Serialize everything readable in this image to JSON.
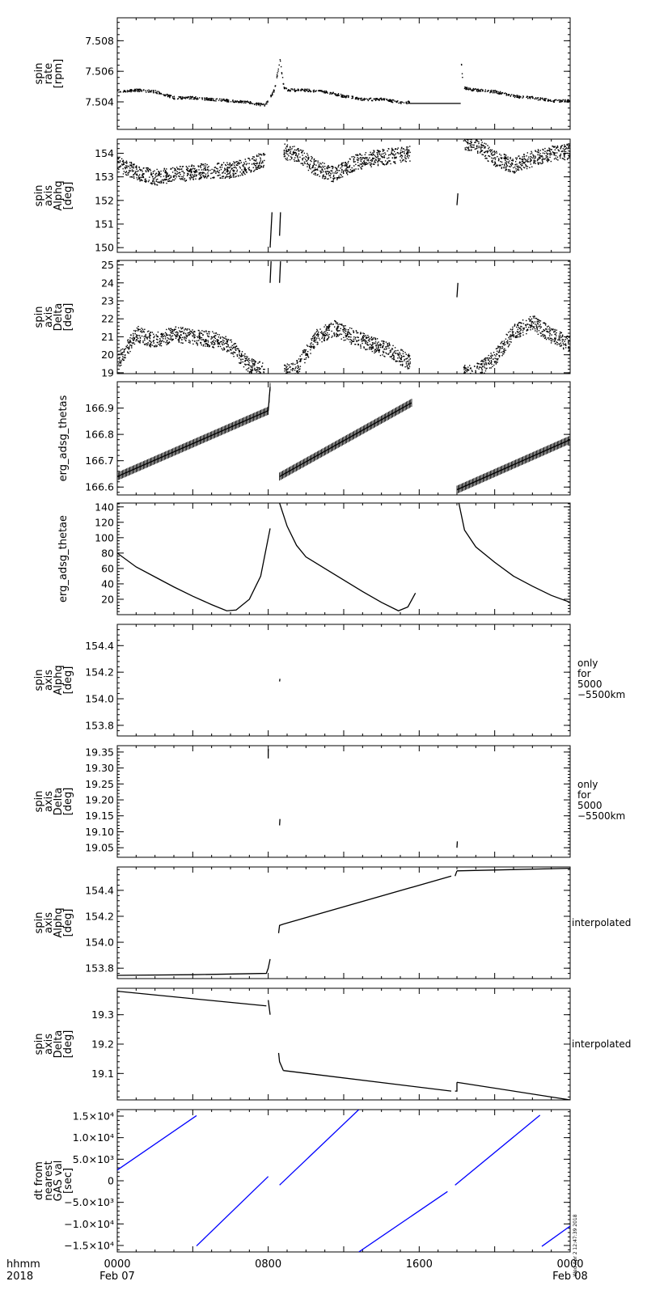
{
  "figure": {
    "time_row_label": "hhmm",
    "year_row_label": "2018",
    "time_ticks": [
      "0000",
      "0800",
      "1600",
      "0000"
    ],
    "date_ticks": [
      "Feb 07",
      "",
      "",
      "Feb 08"
    ],
    "stamp": "Wed Apr  2 12:47:39 2018"
  },
  "chart_data": [
    {
      "type": "scatter",
      "id": "spin_rate",
      "ylabel": [
        "spin",
        "rate",
        "[rpm]"
      ],
      "yticks": [
        "7.508",
        "7.506",
        "7.504"
      ],
      "ytick_values": [
        7.508,
        7.506,
        7.504
      ],
      "ylim": [
        7.5022,
        7.5095
      ],
      "xlim": [
        0,
        24
      ],
      "x_unit": "hours (2018-02-07 UT)",
      "color": "#000000",
      "segments": [
        {
          "x": [
            0,
            1,
            2,
            3,
            4,
            5,
            6,
            7,
            7.8,
            8.3,
            8.6,
            8.8,
            9,
            10,
            11,
            12,
            13,
            14,
            15,
            15.5
          ],
          "y": [
            7.5047,
            7.5048,
            7.5047,
            7.5043,
            7.5043,
            7.5042,
            7.5041,
            7.504,
            7.5038,
            7.5048,
            7.5068,
            7.505,
            7.5048,
            7.5048,
            7.5047,
            7.5044,
            7.5042,
            7.5042,
            7.504,
            7.504
          ]
        },
        {
          "x": [
            15.5,
            16,
            17,
            18.2
          ],
          "y": [
            7.5039,
            7.5039,
            7.5039,
            7.5039
          ],
          "style": "line"
        },
        {
          "x": [
            18.2,
            18.3,
            18.5,
            19,
            20,
            21,
            22,
            23,
            24
          ],
          "y": [
            7.5066,
            7.505,
            7.5049,
            7.5048,
            7.5047,
            7.5044,
            7.5043,
            7.5041,
            7.5041
          ]
        }
      ]
    },
    {
      "type": "scatter",
      "id": "spin_axis_alpha",
      "ylabel": [
        "spin",
        "axis",
        "Alphq",
        "[deg]"
      ],
      "yticks": [
        "154",
        "153",
        "152",
        "151",
        "150"
      ],
      "ytick_values": [
        154,
        153,
        152,
        151,
        150
      ],
      "ylim": [
        149.8,
        154.6
      ],
      "xlim": [
        0,
        24
      ],
      "color": "#000000",
      "segments": [
        {
          "x": [
            0,
            1,
            2,
            3,
            4,
            5,
            6,
            7,
            7.8
          ],
          "y": [
            153.6,
            153.2,
            153.0,
            153.1,
            153.2,
            153.3,
            153.3,
            153.5,
            153.8
          ]
        },
        {
          "x": [
            8.8,
            9.5,
            10.5,
            11.5,
            12.5,
            13.5,
            14.5,
            15.5
          ],
          "y": [
            154.1,
            154.0,
            153.4,
            153.1,
            153.6,
            153.8,
            153.9,
            154.0
          ]
        },
        {
          "x": [
            18.3,
            19,
            20,
            21,
            22,
            23,
            24
          ],
          "y": [
            154.5,
            154.4,
            153.8,
            153.5,
            153.8,
            154.0,
            154.1
          ]
        },
        {
          "x": [
            8.1,
            8.2
          ],
          "y": [
            150.0,
            151.5
          ],
          "style": "line"
        },
        {
          "x": [
            8.6,
            8.65
          ],
          "y": [
            150.5,
            151.5
          ],
          "style": "line"
        },
        {
          "x": [
            18.0,
            18.05
          ],
          "y": [
            151.8,
            152.3
          ],
          "style": "line"
        }
      ]
    },
    {
      "type": "scatter",
      "id": "spin_axis_delta",
      "ylabel": [
        "spin",
        "axis",
        "Delta",
        "[deg]"
      ],
      "yticks": [
        "25",
        "24",
        "23",
        "22",
        "21",
        "20",
        "19"
      ],
      "ytick_values": [
        25,
        24,
        23,
        22,
        21,
        20,
        19
      ],
      "ylim": [
        18.95,
        25.25
      ],
      "xlim": [
        0,
        24
      ],
      "color": "#000000",
      "segments": [
        {
          "x": [
            0,
            1,
            2,
            3,
            4,
            5,
            6,
            7,
            7.8
          ],
          "y": [
            19.6,
            21.2,
            20.8,
            21.2,
            21.0,
            20.9,
            20.5,
            19.4,
            19.1
          ]
        },
        {
          "x": [
            8.8,
            9.5,
            10.5,
            11.5,
            12.5,
            13.5,
            14.5,
            15.5
          ],
          "y": [
            19.0,
            19.3,
            21.0,
            21.5,
            21.0,
            20.6,
            20.2,
            19.6
          ]
        },
        {
          "x": [
            18.3,
            19,
            20,
            21,
            22,
            23,
            24
          ],
          "y": [
            19.0,
            19.1,
            19.9,
            21.3,
            21.8,
            21.1,
            20.6
          ]
        },
        {
          "x": [
            8.1,
            8.15
          ],
          "y": [
            24.0,
            25.2
          ],
          "style": "line"
        },
        {
          "x": [
            8.6,
            8.65
          ],
          "y": [
            24.0,
            25.2
          ],
          "style": "line"
        },
        {
          "x": [
            18.0,
            18.05
          ],
          "y": [
            23.2,
            24.0
          ],
          "style": "line"
        }
      ]
    },
    {
      "type": "line",
      "id": "erg_adsg_thetas",
      "ylabel": [
        "erg_adsg_thetas"
      ],
      "yticks": [
        "166.9",
        "166.8",
        "166.7",
        "166.6"
      ],
      "ytick_values": [
        166.9,
        166.8,
        166.7,
        166.6
      ],
      "ylim": [
        166.57,
        167.0
      ],
      "xlim": [
        0,
        24
      ],
      "color": "#000000",
      "segments": [
        {
          "x": [
            0,
            8.0
          ],
          "y": [
            166.64,
            166.89
          ]
        },
        {
          "x": [
            8.0,
            8.1
          ],
          "y": [
            166.89,
            166.98
          ]
        },
        {
          "x": [
            8.6,
            15.6
          ],
          "y": [
            166.64,
            166.92
          ]
        },
        {
          "x": [
            18.0,
            24
          ],
          "y": [
            166.59,
            166.78
          ]
        }
      ]
    },
    {
      "type": "line",
      "id": "erg_adsg_thetae",
      "ylabel": [
        "erg_adsg_thetae"
      ],
      "yticks": [
        "140",
        "120",
        "100",
        "80",
        "60",
        "40",
        "20"
      ],
      "ytick_values": [
        140,
        120,
        100,
        80,
        60,
        40,
        20
      ],
      "ylim": [
        0,
        145
      ],
      "xlim": [
        0,
        24
      ],
      "color": "#000000",
      "segments": [
        {
          "x": [
            0,
            1,
            2,
            3,
            4,
            5,
            5.8,
            6.3,
            7,
            7.6,
            8.1
          ],
          "y": [
            80,
            62,
            49,
            36,
            24,
            13,
            5,
            6,
            20,
            50,
            112
          ]
        },
        {
          "x": [
            8.6,
            9,
            9.5,
            10,
            11,
            12,
            13,
            14,
            14.9,
            15.4,
            15.8
          ],
          "y": [
            145,
            115,
            90,
            75,
            60,
            45,
            30,
            16,
            5,
            10,
            28
          ]
        },
        {
          "x": [
            18.1,
            18.4,
            19,
            20,
            21,
            22,
            23,
            24
          ],
          "y": [
            145,
            110,
            88,
            68,
            50,
            37,
            25,
            16
          ]
        }
      ]
    },
    {
      "type": "scatter",
      "id": "spin_axis_alpha_5000",
      "ylabel": [
        "spin",
        "axis",
        "Alphq",
        "[deg]"
      ],
      "side_label": [
        "only",
        "for",
        "5000",
        "−5500km"
      ],
      "yticks": [
        "154.4",
        "154.2",
        "154.0",
        "153.8"
      ],
      "ytick_values": [
        154.4,
        154.2,
        154.0,
        153.8
      ],
      "ylim": [
        153.72,
        154.56
      ],
      "xlim": [
        0,
        24
      ],
      "color": "#000000",
      "segments": [
        {
          "x": [
            8.6,
            8.62
          ],
          "y": [
            154.13,
            154.15
          ],
          "style": "line"
        }
      ]
    },
    {
      "type": "scatter",
      "id": "spin_axis_delta_5000",
      "ylabel": [
        "spin",
        "axis",
        "Delta",
        "[deg]"
      ],
      "side_label": [
        "only",
        "for",
        "5000",
        "−5500km"
      ],
      "yticks": [
        "19.35",
        "19.30",
        "19.25",
        "19.20",
        "19.15",
        "19.10",
        "19.05"
      ],
      "ytick_values": [
        19.35,
        19.3,
        19.25,
        19.2,
        19.15,
        19.1,
        19.05
      ],
      "ylim": [
        19.02,
        19.37
      ],
      "xlim": [
        0,
        24
      ],
      "color": "#000000",
      "segments": [
        {
          "x": [
            8.0,
            8.0
          ],
          "y": [
            19.33,
            19.36
          ],
          "style": "line"
        },
        {
          "x": [
            8.6,
            8.62
          ],
          "y": [
            19.12,
            19.14
          ],
          "style": "line"
        },
        {
          "x": [
            18.0,
            18.02
          ],
          "y": [
            19.05,
            19.07
          ],
          "style": "line"
        }
      ]
    },
    {
      "type": "line",
      "id": "spin_axis_alpha_interp",
      "ylabel": [
        "spin",
        "axis",
        "Alphq",
        "[deg]"
      ],
      "side_label": [
        "interpolated"
      ],
      "yticks": [
        "154.4",
        "154.2",
        "154.0",
        "153.8"
      ],
      "ytick_values": [
        154.4,
        154.2,
        154.0,
        153.8
      ],
      "ylim": [
        153.72,
        154.58
      ],
      "xlim": [
        0,
        24
      ],
      "color": "#000000",
      "segments": [
        {
          "x": [
            0,
            4,
            7.9,
            8.0,
            8.1
          ],
          "y": [
            153.745,
            153.75,
            153.76,
            153.8,
            153.87
          ]
        },
        {
          "x": [
            8.55,
            8.6,
            8.8,
            17.7
          ],
          "y": [
            154.07,
            154.13,
            154.14,
            154.51
          ]
        },
        {
          "x": [
            17.9,
            18.0
          ],
          "y": [
            154.51,
            154.55
          ]
        },
        {
          "x": [
            18.0,
            24
          ],
          "y": [
            154.55,
            154.57
          ]
        }
      ]
    },
    {
      "type": "line",
      "id": "spin_axis_delta_interp",
      "ylabel": [
        "spin",
        "axis",
        "Delta",
        "[deg]"
      ],
      "side_label": [
        "interpolated"
      ],
      "yticks": [
        "19.3",
        "19.2",
        "19.1"
      ],
      "ytick_values": [
        19.3,
        19.2,
        19.1
      ],
      "ylim": [
        19.01,
        19.39
      ],
      "xlim": [
        0,
        24
      ],
      "color": "#000000",
      "segments": [
        {
          "x": [
            0,
            7.9
          ],
          "y": [
            19.38,
            19.33
          ]
        },
        {
          "x": [
            8.0,
            8.1
          ],
          "y": [
            19.35,
            19.3
          ]
        },
        {
          "x": [
            8.55,
            8.6,
            8.8
          ],
          "y": [
            19.17,
            19.14,
            19.11
          ]
        },
        {
          "x": [
            8.8,
            17.7
          ],
          "y": [
            19.11,
            19.04
          ]
        },
        {
          "x": [
            17.9,
            18.0,
            18.0
          ],
          "y": [
            19.04,
            19.04,
            19.07
          ]
        },
        {
          "x": [
            18.0,
            24
          ],
          "y": [
            19.07,
            19.01
          ]
        }
      ]
    },
    {
      "type": "line",
      "id": "dt_from_nearest_gas",
      "ylabel": [
        "dt from",
        "nearest",
        "GAS val",
        "[sec]"
      ],
      "yticks": [
        "1.5×10⁴",
        "1.0×10⁴",
        "5.0×10³",
        "0",
        "−5.0×10³",
        "−1.0×10⁴",
        "−1.5×10⁴"
      ],
      "ytick_values": [
        15000,
        10000,
        5000,
        0,
        -5000,
        -10000,
        -15000
      ],
      "ylim": [
        -16500,
        16500
      ],
      "xlim": [
        0,
        24
      ],
      "color": "#0000ff",
      "segments": [
        {
          "x": [
            0,
            4.2
          ],
          "y": [
            2500,
            15100
          ]
        },
        {
          "x": [
            4.2,
            8.0
          ],
          "y": [
            -15100,
            1000
          ]
        },
        {
          "x": [
            8.6,
            12.8
          ],
          "y": [
            -1000,
            16500
          ]
        },
        {
          "x": [
            12.8,
            17.5
          ],
          "y": [
            -16500,
            -2500
          ]
        },
        {
          "x": [
            17.9,
            22.4
          ],
          "y": [
            -1000,
            15200
          ]
        },
        {
          "x": [
            22.5,
            24
          ],
          "y": [
            -15200,
            -10500
          ]
        }
      ]
    }
  ]
}
